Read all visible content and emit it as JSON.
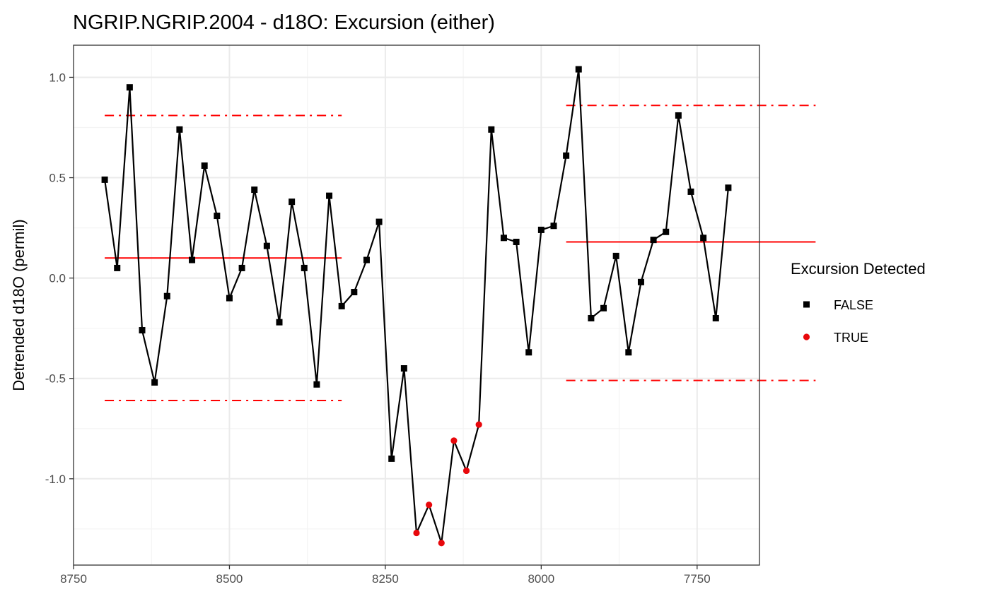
{
  "chart_data": {
    "type": "scatter",
    "title": "NGRIP.NGRIP.2004 - d18O: Excursion (either)",
    "xlabel": "",
    "ylabel": "Detrended d18O (permil)",
    "xlim": [
      8750,
      7650
    ],
    "ylim": [
      -1.43,
      1.16
    ],
    "x_reversed": true,
    "grid": true,
    "x_ticks": [
      8750,
      8500,
      8250,
      8000,
      7750
    ],
    "y_ticks": [
      -1.0,
      -0.5,
      0.0,
      0.5,
      1.0
    ],
    "x_tick_labels": [
      "8750",
      "8500",
      "8250",
      "8000",
      "7750"
    ],
    "y_tick_labels": [
      "-1.0",
      "-0.5",
      "0.0",
      "0.5",
      "1.0"
    ],
    "series": [
      {
        "x": [
          8700,
          8680,
          8660,
          8640,
          8620,
          8600,
          8580,
          8560,
          8540,
          8520,
          8500,
          8480,
          8460,
          8440,
          8420,
          8400,
          8380,
          8360,
          8340,
          8320,
          8300,
          8280,
          8260,
          8240,
          8220,
          8200,
          8180,
          8160,
          8140,
          8120,
          8100,
          8080,
          8060,
          8040,
          8020,
          8000,
          7980,
          7960,
          7940,
          7920,
          7900,
          7880,
          7860,
          7840,
          7820,
          7800,
          7780,
          7760,
          7740,
          7720,
          7700
        ],
        "y": [
          0.49,
          0.05,
          0.95,
          -0.26,
          -0.52,
          -0.09,
          0.74,
          0.09,
          0.56,
          0.31,
          -0.1,
          0.05,
          0.44,
          0.16,
          -0.22,
          0.38,
          0.05,
          -0.53,
          0.41,
          -0.14,
          -0.07,
          0.09,
          0.28,
          -0.9,
          -0.45,
          -1.27,
          -1.13,
          -1.32,
          -0.81,
          -0.96,
          -0.73,
          0.74,
          0.2,
          0.18,
          -0.37,
          0.24,
          0.26,
          0.61,
          1.04,
          -0.2,
          -0.15,
          0.11,
          -0.37,
          -0.02,
          0.19,
          0.23,
          0.81,
          0.43,
          0.2,
          -0.2,
          0.45
        ],
        "excursion": [
          false,
          false,
          false,
          false,
          false,
          false,
          false,
          false,
          false,
          false,
          false,
          false,
          false,
          false,
          false,
          false,
          false,
          false,
          false,
          false,
          false,
          false,
          false,
          false,
          false,
          true,
          true,
          true,
          true,
          true,
          true,
          false,
          false,
          false,
          false,
          false,
          false,
          false,
          false,
          false,
          false,
          false,
          false,
          false,
          false,
          false,
          false,
          false,
          false,
          false,
          false
        ]
      }
    ],
    "reference_lines": [
      {
        "x_start": 8700,
        "x_end": 8320,
        "mean": 0.1,
        "upper": 0.81,
        "lower": -0.61
      },
      {
        "x_start": 7960,
        "x_end": 7560,
        "mean": 0.18,
        "upper": 0.86,
        "lower": -0.51
      }
    ],
    "legend": {
      "title": "Excursion Detected",
      "placement": "right",
      "entries": [
        {
          "label": "FALSE",
          "color": "#000000",
          "shape": "square"
        },
        {
          "label": "TRUE",
          "color": "#e8080c",
          "shape": "circle"
        }
      ]
    },
    "colors": {
      "line": "#000000",
      "false_point": "#000000",
      "true_point": "#e8080c",
      "reference": "#ff0000",
      "grid_major": "#ebebeb",
      "grid_minor": "#f4f4f4",
      "panel_border": "#333333"
    }
  }
}
